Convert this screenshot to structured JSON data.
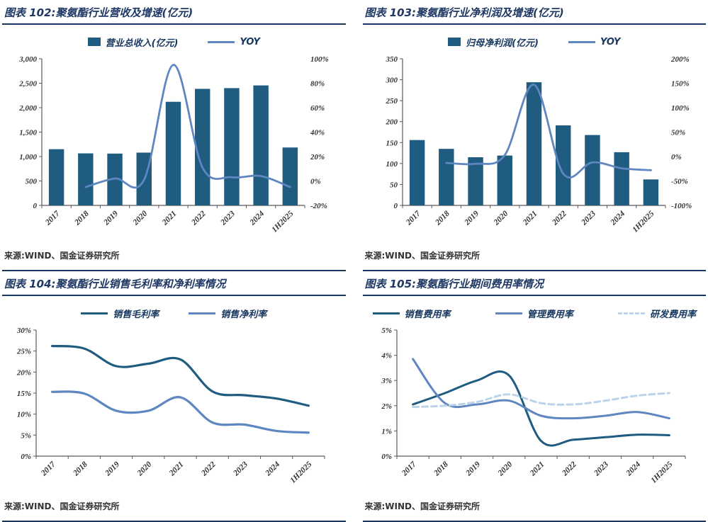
{
  "colors": {
    "title_navy": "#1F3864",
    "rule_navy": "#17375E",
    "bar_blue": "#1F5C80",
    "line_blue": "#5E86C1",
    "line_pale": "#BDD3EA",
    "axis_gray": "#595959"
  },
  "panels": [
    {
      "title": "图表 102:聚氨酯行业营收及增速(亿元)",
      "source": "来源:WIND、国金证券研究所"
    },
    {
      "title": "图表 103:聚氨酯行业净利润及增速(亿元)",
      "source": "来源:WIND、国金证券研究所"
    },
    {
      "title": "图表 104:聚氨酯行业销售毛利率和净利率情况",
      "source": "来源:WIND、国金证券研究所"
    },
    {
      "title": "图表 105:聚氨酯行业期间费用率情况",
      "source": "来源:WIND、国金证券研究所"
    }
  ],
  "chart_data": [
    {
      "type": "bar",
      "title": "聚氨酯行业营收及增速(亿元)",
      "legend_position": "top",
      "grid": false,
      "categories": [
        "2017",
        "2018",
        "2019",
        "2020",
        "2021",
        "2022",
        "2023",
        "2024",
        "1H2025"
      ],
      "bar": {
        "name": "营业总收入(亿元)",
        "color": "#1F5C80",
        "axis": "left",
        "values": [
          1150,
          1065,
          1060,
          1080,
          2120,
          2385,
          2400,
          2455,
          1185
        ]
      },
      "lines": [
        {
          "name": "YOY",
          "color": "#5E86C1",
          "axis": "right",
          "dash": false,
          "values": [
            null,
            -5,
            2,
            1,
            95,
            11,
            3,
            4,
            -5
          ]
        }
      ],
      "left_axis": {
        "min": 0,
        "max": 3000,
        "step": 500,
        "thousands": true
      },
      "right_axis": {
        "min": -20,
        "max": 100,
        "step": 20,
        "percent": true
      }
    },
    {
      "type": "bar",
      "title": "聚氨酯行业净利润及增速(亿元)",
      "legend_position": "top",
      "grid": false,
      "categories": [
        "2017",
        "2018",
        "2019",
        "2020",
        "2021",
        "2022",
        "2023",
        "2024",
        "1H2025"
      ],
      "bar": {
        "name": "归母净利润(亿元)",
        "color": "#1F5C80",
        "axis": "left",
        "values": [
          156,
          135,
          115,
          119,
          294,
          191,
          168,
          127,
          62
        ]
      },
      "lines": [
        {
          "name": "YOY",
          "color": "#5E86C1",
          "axis": "right",
          "dash": false,
          "values": [
            null,
            -13,
            -15,
            3,
            147,
            -35,
            -12,
            -24,
            -28
          ]
        }
      ],
      "left_axis": {
        "min": 0,
        "max": 350,
        "step": 50
      },
      "right_axis": {
        "min": -100,
        "max": 200,
        "step": 50,
        "percent": true
      }
    },
    {
      "type": "line",
      "title": "聚氨酯行业销售毛利率和净利率情况",
      "legend_position": "top",
      "grid": false,
      "categories": [
        "2017",
        "2018",
        "2019",
        "2020",
        "2021",
        "2022",
        "2023",
        "2024",
        "1H2025"
      ],
      "lines": [
        {
          "name": "销售毛利率",
          "color": "#1F5C80",
          "width": 3.2,
          "dash": false,
          "values": [
            26.2,
            25.6,
            21.4,
            22.0,
            23.0,
            15.4,
            14.5,
            13.7,
            12.0
          ]
        },
        {
          "name": "销售净利率",
          "color": "#5E86C1",
          "width": 3.2,
          "dash": false,
          "values": [
            15.3,
            14.9,
            10.8,
            10.8,
            14.0,
            8.0,
            7.5,
            6.0,
            5.6
          ]
        }
      ],
      "left_axis": {
        "min": 0,
        "max": 30,
        "step": 5,
        "percent": true
      }
    },
    {
      "type": "line",
      "title": "聚氨酯行业期间费用率情况",
      "legend_position": "top",
      "grid": false,
      "categories": [
        "2017",
        "2018",
        "2019",
        "2020",
        "2021",
        "2022",
        "2023",
        "2024",
        "1H2025"
      ],
      "lines": [
        {
          "name": "销售费用率",
          "color": "#1F5C80",
          "width": 3,
          "dash": false,
          "values": [
            2.05,
            2.5,
            3.0,
            3.2,
            0.6,
            0.65,
            0.75,
            0.85,
            0.83
          ]
        },
        {
          "name": "管理费用率",
          "color": "#5E86C1",
          "width": 3,
          "dash": false,
          "values": [
            3.85,
            2.1,
            2.05,
            2.2,
            1.6,
            1.5,
            1.6,
            1.75,
            1.5
          ]
        },
        {
          "name": "研发费用率",
          "color": "#BDD3EA",
          "width": 3,
          "dash": true,
          "values": [
            1.95,
            2.0,
            2.15,
            2.45,
            2.1,
            2.05,
            2.2,
            2.4,
            2.5
          ]
        }
      ],
      "left_axis": {
        "min": 0,
        "max": 5,
        "step": 1,
        "percent": true
      }
    }
  ]
}
